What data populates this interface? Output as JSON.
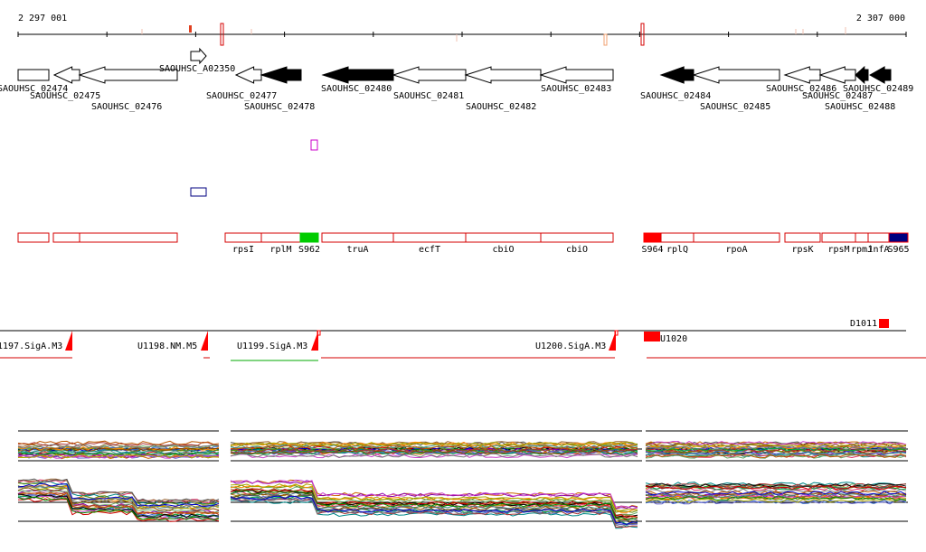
{
  "coords": {
    "start": "2 297 001",
    "end": "2 307 000"
  },
  "colors": {
    "gene": "#000000",
    "feature": "#d60000",
    "green": "#00cc00",
    "blue": "#000080",
    "magenta": "#cc00cc"
  },
  "genes": [
    {
      "label": "SAOUHSC_02474",
      "dir": "none",
      "filled": false,
      "row": 0
    },
    {
      "label": "SAOUHSC_02475",
      "dir": "left",
      "filled": false,
      "row": 0
    },
    {
      "label": "SAOUHSC_02476",
      "dir": "left",
      "filled": false,
      "row": 0
    },
    {
      "label": "SAOUHSC_A02350",
      "dir": "right",
      "filled": false,
      "row": 1
    },
    {
      "label": "SAOUHSC_02477",
      "dir": "left",
      "filled": false,
      "row": 0
    },
    {
      "label": "SAOUHSC_02478",
      "dir": "left",
      "filled": true,
      "row": 0
    },
    {
      "label": "SAOUHSC_02480",
      "dir": "left",
      "filled": true,
      "row": 0
    },
    {
      "label": "SAOUHSC_02481",
      "dir": "left",
      "filled": false,
      "row": 0
    },
    {
      "label": "SAOUHSC_02482",
      "dir": "left",
      "filled": false,
      "row": 0
    },
    {
      "label": "SAOUHSC_02483",
      "dir": "left",
      "filled": false,
      "row": 0
    },
    {
      "label": "SAOUHSC_02484",
      "dir": "left",
      "filled": true,
      "row": 0
    },
    {
      "label": "SAOUHSC_02485",
      "dir": "left",
      "filled": false,
      "row": 0
    },
    {
      "label": "SAOUHSC_02486",
      "dir": "left",
      "filled": false,
      "row": 0
    },
    {
      "label": "SAOUHSC_02487",
      "dir": "left",
      "filled": false,
      "row": 0
    },
    {
      "label": "SAOUHSC_02488",
      "dir": "left",
      "filled": true,
      "row": 0
    },
    {
      "label": "SAOUHSC_02489",
      "dir": "left",
      "filled": true,
      "row": 0
    }
  ],
  "features": [
    {
      "label": "",
      "kind": "box"
    },
    {
      "label": "",
      "kind": "box"
    },
    {
      "label": "",
      "kind": "box"
    },
    {
      "label": "rpsI",
      "kind": "box"
    },
    {
      "label": "rplM",
      "kind": "box"
    },
    {
      "label": "S962",
      "kind": "green"
    },
    {
      "label": "truA",
      "kind": "box"
    },
    {
      "label": "ecfT",
      "kind": "box"
    },
    {
      "label": "cbiO",
      "kind": "box"
    },
    {
      "label": "cbiO",
      "kind": "box"
    },
    {
      "label": "S964",
      "kind": "red"
    },
    {
      "label": "rplQ",
      "kind": "box"
    },
    {
      "label": "rpoA",
      "kind": "box"
    },
    {
      "label": "rpsK",
      "kind": "box"
    },
    {
      "label": "rpsM",
      "kind": "box"
    },
    {
      "label": "rpmJ",
      "kind": "box"
    },
    {
      "label": "infA",
      "kind": "box"
    },
    {
      "label": "S965",
      "kind": "blue"
    }
  ],
  "operons": [
    {
      "label": "1197.SigA.M3"
    },
    {
      "label": "U1198.NM.M5"
    },
    {
      "label": "U1199.SigA.M3"
    },
    {
      "label": "U1200.SigA.M3"
    }
  ],
  "markers": {
    "d1011": "D1011",
    "u1020": "U1020"
  }
}
